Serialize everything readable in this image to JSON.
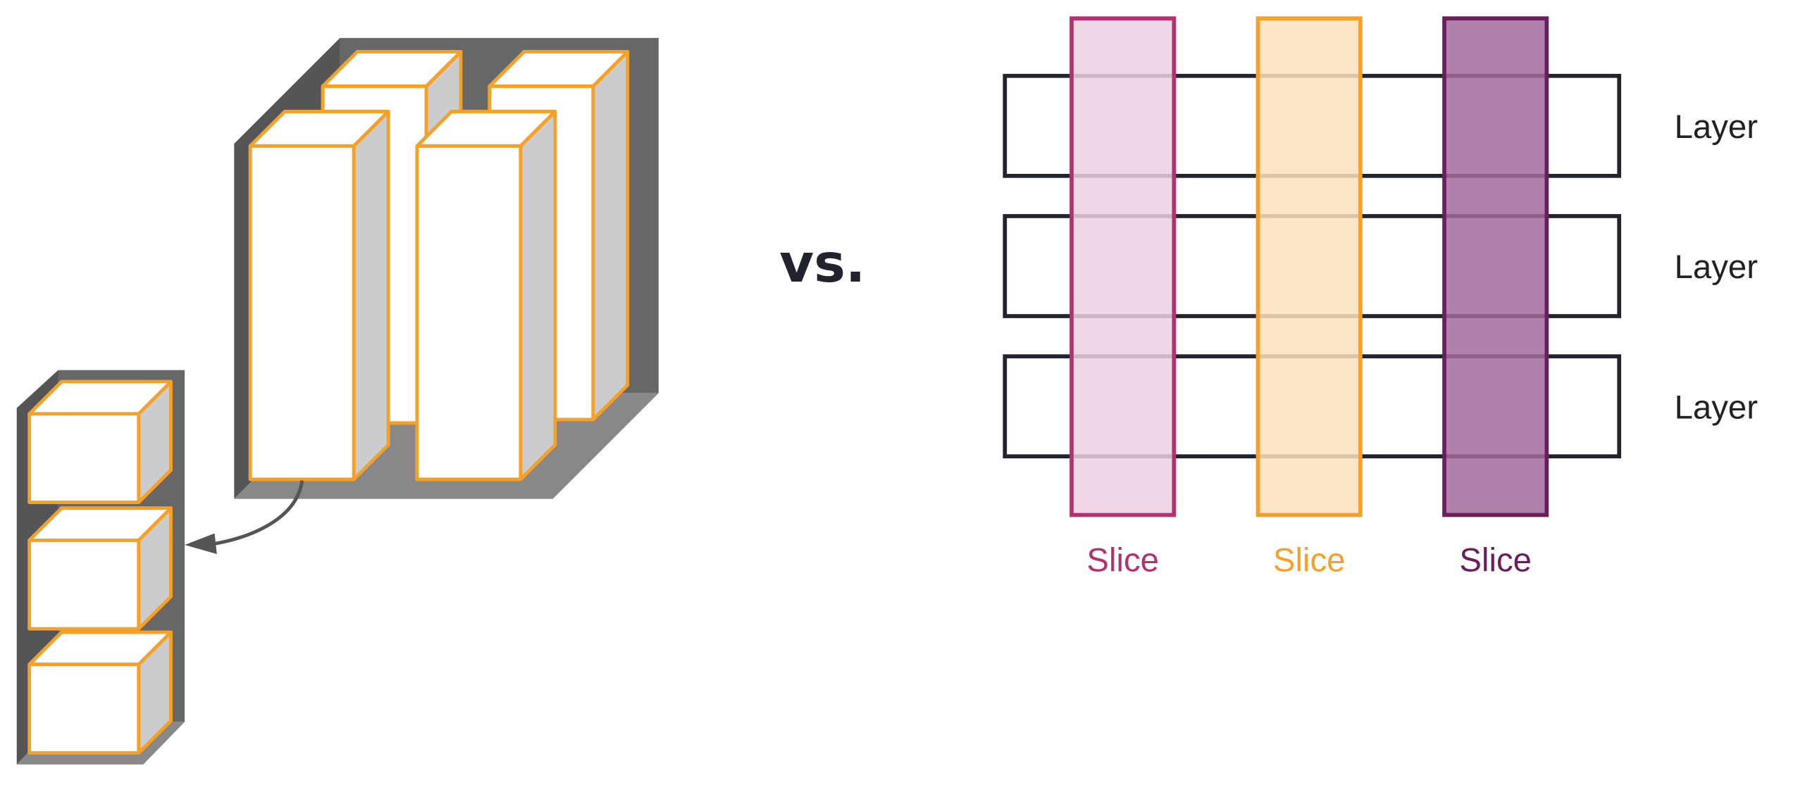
{
  "separator_text": "vs.",
  "layers": [
    {
      "label": "Layer"
    },
    {
      "label": "Layer"
    },
    {
      "label": "Layer"
    }
  ],
  "slices": [
    {
      "label": "Slice",
      "stroke": "#b5306e",
      "fill": "#eecfe0"
    },
    {
      "label": "Slice",
      "stroke": "#f4a12a",
      "fill": "#fde0c0"
    },
    {
      "label": "Slice",
      "stroke": "#6b1d5c",
      "fill": "#a26b9b"
    }
  ],
  "colors": {
    "block_outline": "#f4a12a",
    "block_side": "#cccccc",
    "container_dark": "#555555",
    "container_mid": "#676767",
    "container_light": "#888888",
    "layer_outline": "#23222f",
    "arrow": "#555555"
  }
}
